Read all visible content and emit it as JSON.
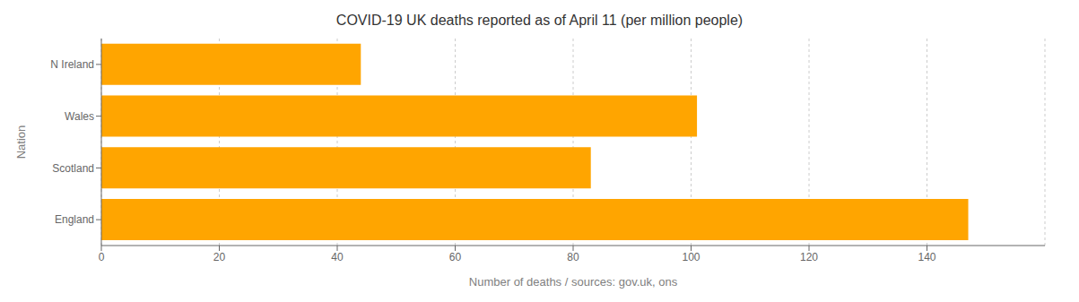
{
  "chart_data": {
    "type": "bar",
    "orientation": "horizontal",
    "title": "COVID-19 UK deaths reported as of April 11 (per million people)",
    "xlabel": "Number of deaths / sources: gov.uk, ons",
    "ylabel": "Nation",
    "categories": [
      "England",
      "Scotland",
      "Wales",
      "N Ireland"
    ],
    "values": [
      147,
      83,
      101,
      44
    ],
    "color": "#FFA500",
    "xlim": [
      0,
      160
    ],
    "xticks": [
      0,
      20,
      40,
      60,
      80,
      100,
      120,
      140
    ],
    "grid": true
  }
}
